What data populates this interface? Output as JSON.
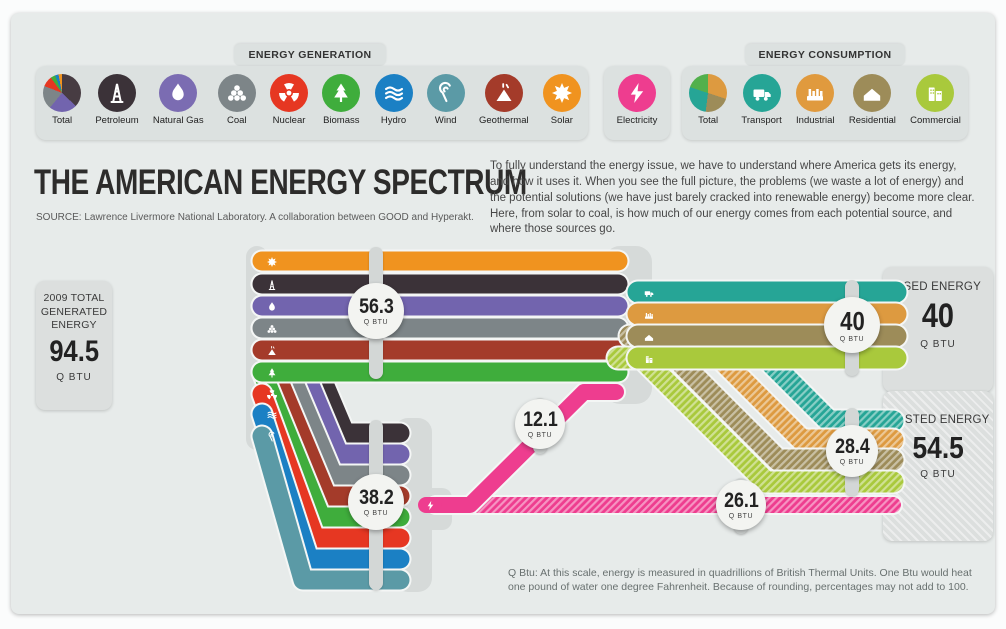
{
  "header": {
    "generation": {
      "tab": "ENERGY GENERATION",
      "items": [
        {
          "label": "Total",
          "icon": "pie-generation",
          "color": "",
          "pie": [
            {
              "color": "#473c42",
              "pct": 37
            },
            {
              "color": "#7264ae",
              "pct": 24
            },
            {
              "color": "#7d8588",
              "pct": 20
            },
            {
              "color": "#e63722",
              "pct": 9
            },
            {
              "color": "#3fad3c",
              "pct": 4
            },
            {
              "color": "#1b80c4",
              "pct": 3
            },
            {
              "color": "#f0931f",
              "pct": 3
            }
          ]
        },
        {
          "label": "Petroleum",
          "icon": "derrick-icon",
          "color": "#3b3238"
        },
        {
          "label": "Natural Gas",
          "icon": "flame-icon",
          "color": "#7b6cb2"
        },
        {
          "label": "Coal",
          "icon": "coal-icon",
          "color": "#7d8588"
        },
        {
          "label": "Nuclear",
          "icon": "radiation-icon",
          "color": "#e63722"
        },
        {
          "label": "Biomass",
          "icon": "tree-icon",
          "color": "#3fad3c"
        },
        {
          "label": "Hydro",
          "icon": "waves-icon",
          "color": "#1b80c4"
        },
        {
          "label": "Wind",
          "icon": "swirl-icon",
          "color": "#5b9aa6"
        },
        {
          "label": "Geothermal",
          "icon": "volcano-icon",
          "color": "#a43b2a"
        },
        {
          "label": "Solar",
          "icon": "sun-icon",
          "color": "#f0931f"
        }
      ]
    },
    "electricity": {
      "label": "Electricity",
      "icon": "bolt-icon",
      "color": "#ee3d8f"
    },
    "consumption": {
      "tab": "ENERGY CONSUMPTION",
      "items": [
        {
          "label": "Total",
          "icon": "pie-consumption",
          "color": "",
          "pie": [
            {
              "color": "#dd9a40",
              "pct": 30
            },
            {
              "color": "#9d8c59",
              "pct": 22
            },
            {
              "color": "#26a596",
              "pct": 28
            },
            {
              "color": "#52b04c",
              "pct": 20
            }
          ]
        },
        {
          "label": "Transport",
          "icon": "truck-icon",
          "color": "#26a596"
        },
        {
          "label": "Industrial",
          "icon": "factory-icon",
          "color": "#e09a3e"
        },
        {
          "label": "Residential",
          "icon": "house-icon",
          "color": "#9d8c59"
        },
        {
          "label": "Commercial",
          "icon": "buildings-icon",
          "color": "#a9c93c"
        }
      ]
    }
  },
  "title": "THE AMERICAN ENERGY SPECTRUM",
  "source": "SOURCE: Lawrence Livermore National Laboratory. A collaboration between GOOD and Hyperakt.",
  "intro": "To fully understand the energy issue, we have to understand where America gets its energy, and how it uses it. When you see the full picture, the problems (we waste a lot of energy) and the potential solutions (we have just barely cracked into renewable energy) become more clear. Here, from solar to coal, is how much of our energy comes from each potential source, and where those sources go.",
  "footnote": "Q Btu: At this scale, energy is measured in quadrillions of British Thermal Units. One Btu would heat one pound of water one degree Fahrenheit. Because of rounding, percentages may not add to 100.",
  "chart_data": {
    "type": "sankey",
    "unit": "Q BTU",
    "generated": {
      "label": "2009 TOTAL GENERATED ENERGY",
      "value": "94.5",
      "unit": "Q BTU"
    },
    "used": {
      "label": "USED ENERGY",
      "value": "40",
      "unit": "Q BTU"
    },
    "wasted": {
      "label": "WASTED ENERGY",
      "value": "54.5",
      "unit": "Q BTU"
    },
    "flows": {
      "direct_to_consumption": {
        "value": "56.3",
        "unit": "Q BTU"
      },
      "sources_to_electricity": {
        "value": "38.2",
        "unit": "Q BTU"
      },
      "electricity_to_consumption": {
        "value": "12.1",
        "unit": "Q BTU"
      },
      "electricity_wasted": {
        "value": "26.1",
        "unit": "Q BTU"
      },
      "consumption_used": {
        "value": "40",
        "unit": "Q BTU"
      },
      "consumption_wasted": {
        "value": "28.4",
        "unit": "Q BTU"
      }
    },
    "sources": [
      {
        "name": "Solar",
        "icon": "sun-icon",
        "color": "#f0931f"
      },
      {
        "name": "Petroleum",
        "icon": "derrick-icon",
        "color": "#3b3238"
      },
      {
        "name": "Natural Gas",
        "icon": "flame-icon",
        "color": "#7264ae"
      },
      {
        "name": "Coal",
        "icon": "coal-icon",
        "color": "#7d8588"
      },
      {
        "name": "Geothermal",
        "icon": "volcano-icon",
        "color": "#a43b2a"
      },
      {
        "name": "Biomass",
        "icon": "tree-icon",
        "color": "#3fad3c"
      },
      {
        "name": "Nuclear",
        "icon": "radiation-icon",
        "color": "#e63722"
      },
      {
        "name": "Hydro",
        "icon": "waves-icon",
        "color": "#1b80c4"
      },
      {
        "name": "Wind",
        "icon": "swirl-icon",
        "color": "#5b9aa6"
      }
    ],
    "consumers": [
      {
        "name": "Transport",
        "icon": "truck-icon",
        "color": "#26a596"
      },
      {
        "name": "Industrial",
        "icon": "factory-icon",
        "color": "#dd9a40"
      },
      {
        "name": "Residential",
        "icon": "house-icon",
        "color": "#9d8c59"
      },
      {
        "name": "Commercial",
        "icon": "buildings-icon",
        "color": "#a9c93c"
      }
    ],
    "electricity_color": "#ee3d8f"
  }
}
